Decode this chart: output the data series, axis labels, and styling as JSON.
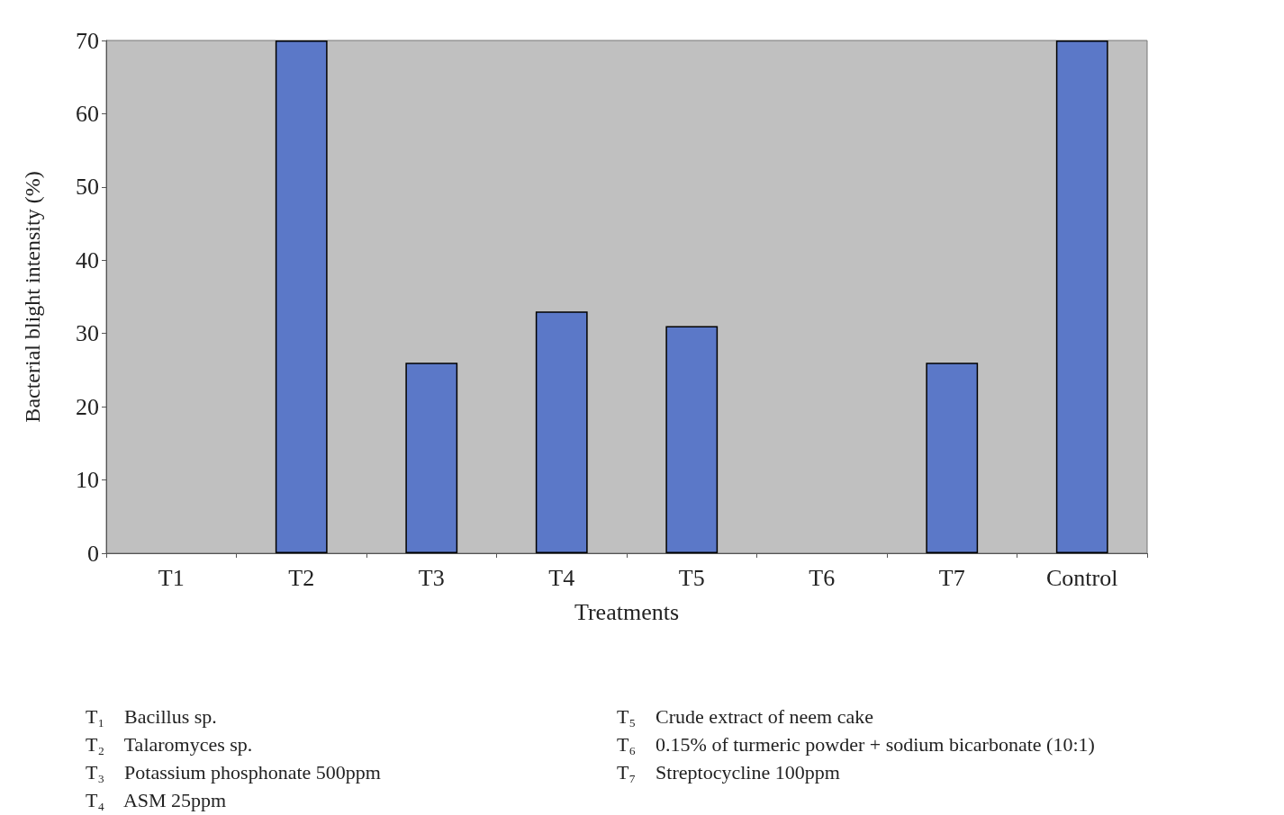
{
  "chart_data": {
    "type": "bar",
    "xlabel": "Treatments",
    "ylabel": "Bacterial blight intensity (%)",
    "categories": [
      "T1",
      "T2",
      "T3",
      "T4",
      "T5",
      "T6",
      "T7",
      "Control"
    ],
    "values": [
      0,
      70,
      26,
      33,
      31,
      0,
      26,
      70
    ],
    "color": "#5b78c8",
    "ylim": [
      0,
      70
    ],
    "yticks": [
      0,
      10,
      20,
      30,
      40,
      50,
      60,
      70
    ],
    "grid": false,
    "annotations": [
      "T₁    Bacillus sp.",
      "T₂    Talaromyces sp.",
      "T₃    Potassium phosphonate 500ppm",
      "T₄    ASM 25ppm",
      "T₅    Crude extract of neem cake",
      "T₆    0.15% of turmeric powder + sodium bicarbonate (10:1)",
      "T₇    Streptocycline 100ppm"
    ]
  }
}
